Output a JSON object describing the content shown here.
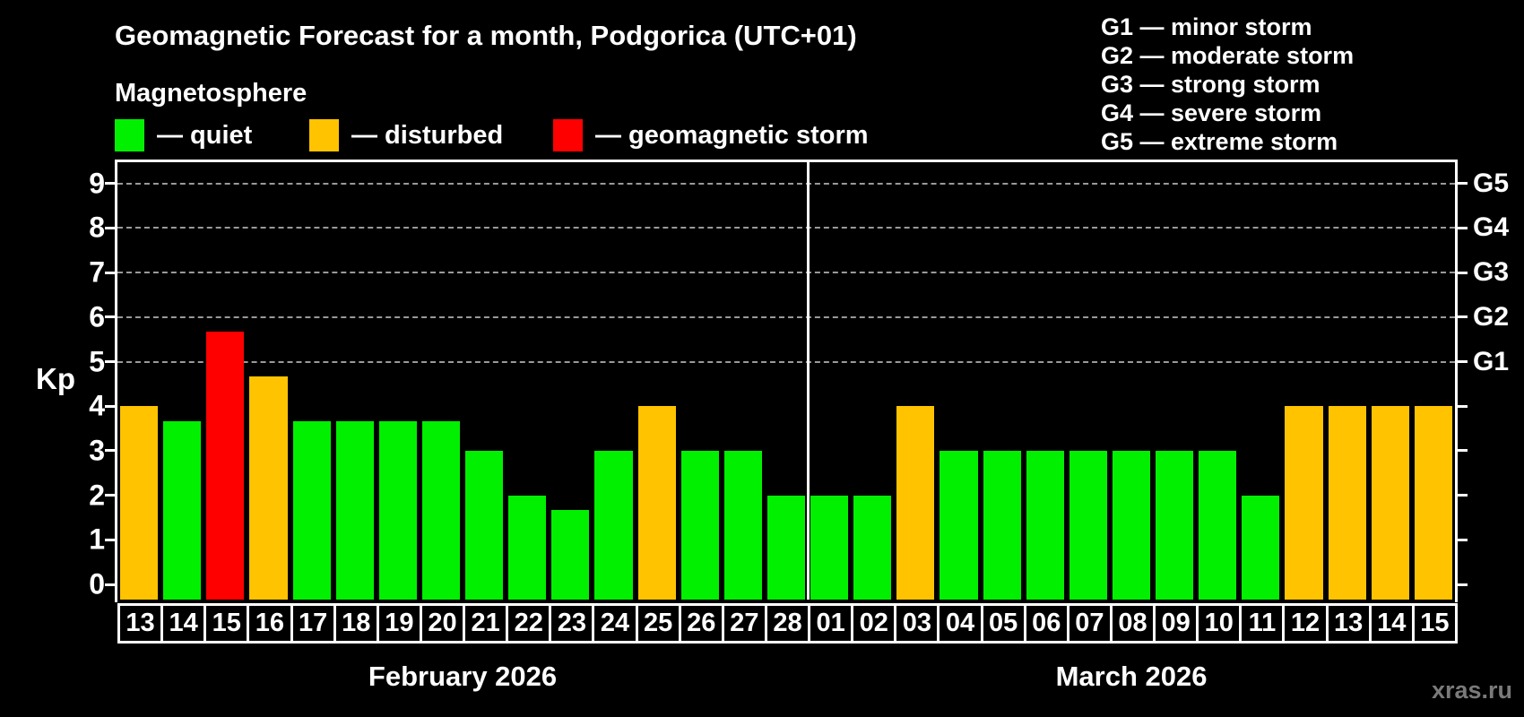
{
  "header": {
    "title": "Geomagnetic Forecast for a month, Podgorica (UTC+01)",
    "subtitle": "Magnetosphere"
  },
  "legend": {
    "items": [
      {
        "status": "quiet",
        "label": "— quiet"
      },
      {
        "status": "disturbed",
        "label": "— disturbed"
      },
      {
        "status": "storm",
        "label": "— geomagnetic storm"
      }
    ]
  },
  "g_legend": [
    "G1 — minor storm",
    "G2 — moderate storm",
    "G3 — strong storm",
    "G4 — severe storm",
    "G5 — extreme storm"
  ],
  "watermark": "xras.ru",
  "colors": {
    "quiet": "#00f000",
    "disturbed": "#ffc300",
    "storm": "#ff0000",
    "grid": "#9a9a9a",
    "axis": "#ffffff",
    "background": "#000000",
    "watermark": "#7a7a7a"
  },
  "chart_data": {
    "type": "bar",
    "title": "Geomagnetic Forecast for a month, Podgorica (UTC+01)",
    "ylabel": "Kp",
    "ylim": [
      0,
      9
    ],
    "yticks": [
      0,
      1,
      2,
      3,
      4,
      5,
      6,
      7,
      8,
      9
    ],
    "gridlines_at": [
      5,
      6,
      7,
      8,
      9
    ],
    "grid": "dashed, only at storm levels G1-G5",
    "legend_position": "top-left and top-right",
    "right_axis": [
      {
        "kp": 5,
        "label": "G1"
      },
      {
        "kp": 6,
        "label": "G2"
      },
      {
        "kp": 7,
        "label": "G3"
      },
      {
        "kp": 8,
        "label": "G4"
      },
      {
        "kp": 9,
        "label": "G5"
      }
    ],
    "groups": [
      {
        "label": "February 2026",
        "days": [
          {
            "date": "13",
            "kp": 4.0,
            "status": "disturbed"
          },
          {
            "date": "14",
            "kp": 3.67,
            "status": "quiet"
          },
          {
            "date": "15",
            "kp": 5.67,
            "status": "storm"
          },
          {
            "date": "16",
            "kp": 4.67,
            "status": "disturbed"
          },
          {
            "date": "17",
            "kp": 3.67,
            "status": "quiet"
          },
          {
            "date": "18",
            "kp": 3.67,
            "status": "quiet"
          },
          {
            "date": "19",
            "kp": 3.67,
            "status": "quiet"
          },
          {
            "date": "20",
            "kp": 3.67,
            "status": "quiet"
          },
          {
            "date": "21",
            "kp": 3.0,
            "status": "quiet"
          },
          {
            "date": "22",
            "kp": 2.0,
            "status": "quiet"
          },
          {
            "date": "23",
            "kp": 1.67,
            "status": "quiet"
          },
          {
            "date": "24",
            "kp": 3.0,
            "status": "quiet"
          },
          {
            "date": "25",
            "kp": 4.0,
            "status": "disturbed"
          },
          {
            "date": "26",
            "kp": 3.0,
            "status": "quiet"
          },
          {
            "date": "27",
            "kp": 3.0,
            "status": "quiet"
          },
          {
            "date": "28",
            "kp": 2.0,
            "status": "quiet"
          }
        ]
      },
      {
        "label": "March 2026",
        "days": [
          {
            "date": "01",
            "kp": 2.0,
            "status": "quiet"
          },
          {
            "date": "02",
            "kp": 2.0,
            "status": "quiet"
          },
          {
            "date": "03",
            "kp": 4.0,
            "status": "disturbed"
          },
          {
            "date": "04",
            "kp": 3.0,
            "status": "quiet"
          },
          {
            "date": "05",
            "kp": 3.0,
            "status": "quiet"
          },
          {
            "date": "06",
            "kp": 3.0,
            "status": "quiet"
          },
          {
            "date": "07",
            "kp": 3.0,
            "status": "quiet"
          },
          {
            "date": "08",
            "kp": 3.0,
            "status": "quiet"
          },
          {
            "date": "09",
            "kp": 3.0,
            "status": "quiet"
          },
          {
            "date": "10",
            "kp": 3.0,
            "status": "quiet"
          },
          {
            "date": "11",
            "kp": 2.0,
            "status": "quiet"
          },
          {
            "date": "12",
            "kp": 4.0,
            "status": "disturbed"
          },
          {
            "date": "13",
            "kp": 4.0,
            "status": "disturbed"
          },
          {
            "date": "14",
            "kp": 4.0,
            "status": "disturbed"
          },
          {
            "date": "15",
            "kp": 4.0,
            "status": "disturbed"
          }
        ]
      }
    ]
  }
}
